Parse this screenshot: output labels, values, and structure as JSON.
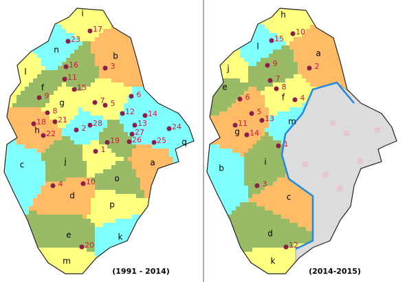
{
  "maps": [
    {
      "caption": "(1991 - 2014)",
      "regions": [
        "i",
        "n",
        "b",
        "l",
        "f",
        "g",
        "h",
        "c",
        "j",
        "d",
        "o",
        "a",
        "p",
        "e",
        "k",
        "m",
        "q"
      ],
      "cities": [
        "17",
        "23",
        "16",
        "3",
        "11",
        "15",
        "9",
        "7",
        "5",
        "6",
        "8",
        "12",
        "14",
        "21",
        "22",
        "2",
        "28",
        "13",
        "27",
        "24",
        "18",
        "19",
        "26",
        "25",
        "1",
        "4",
        "10",
        "20"
      ]
    },
    {
      "caption": "(2014-2015)",
      "regions": [
        "h",
        "l",
        "a",
        "j",
        "e",
        "f",
        "g",
        "m",
        "i",
        "b",
        "c",
        "d",
        "k"
      ],
      "cities": [
        "10",
        "15",
        "9",
        "2",
        "7",
        "8",
        "6",
        "4",
        "5",
        "11",
        "13",
        "14",
        "1",
        "3",
        "12"
      ]
    }
  ]
}
